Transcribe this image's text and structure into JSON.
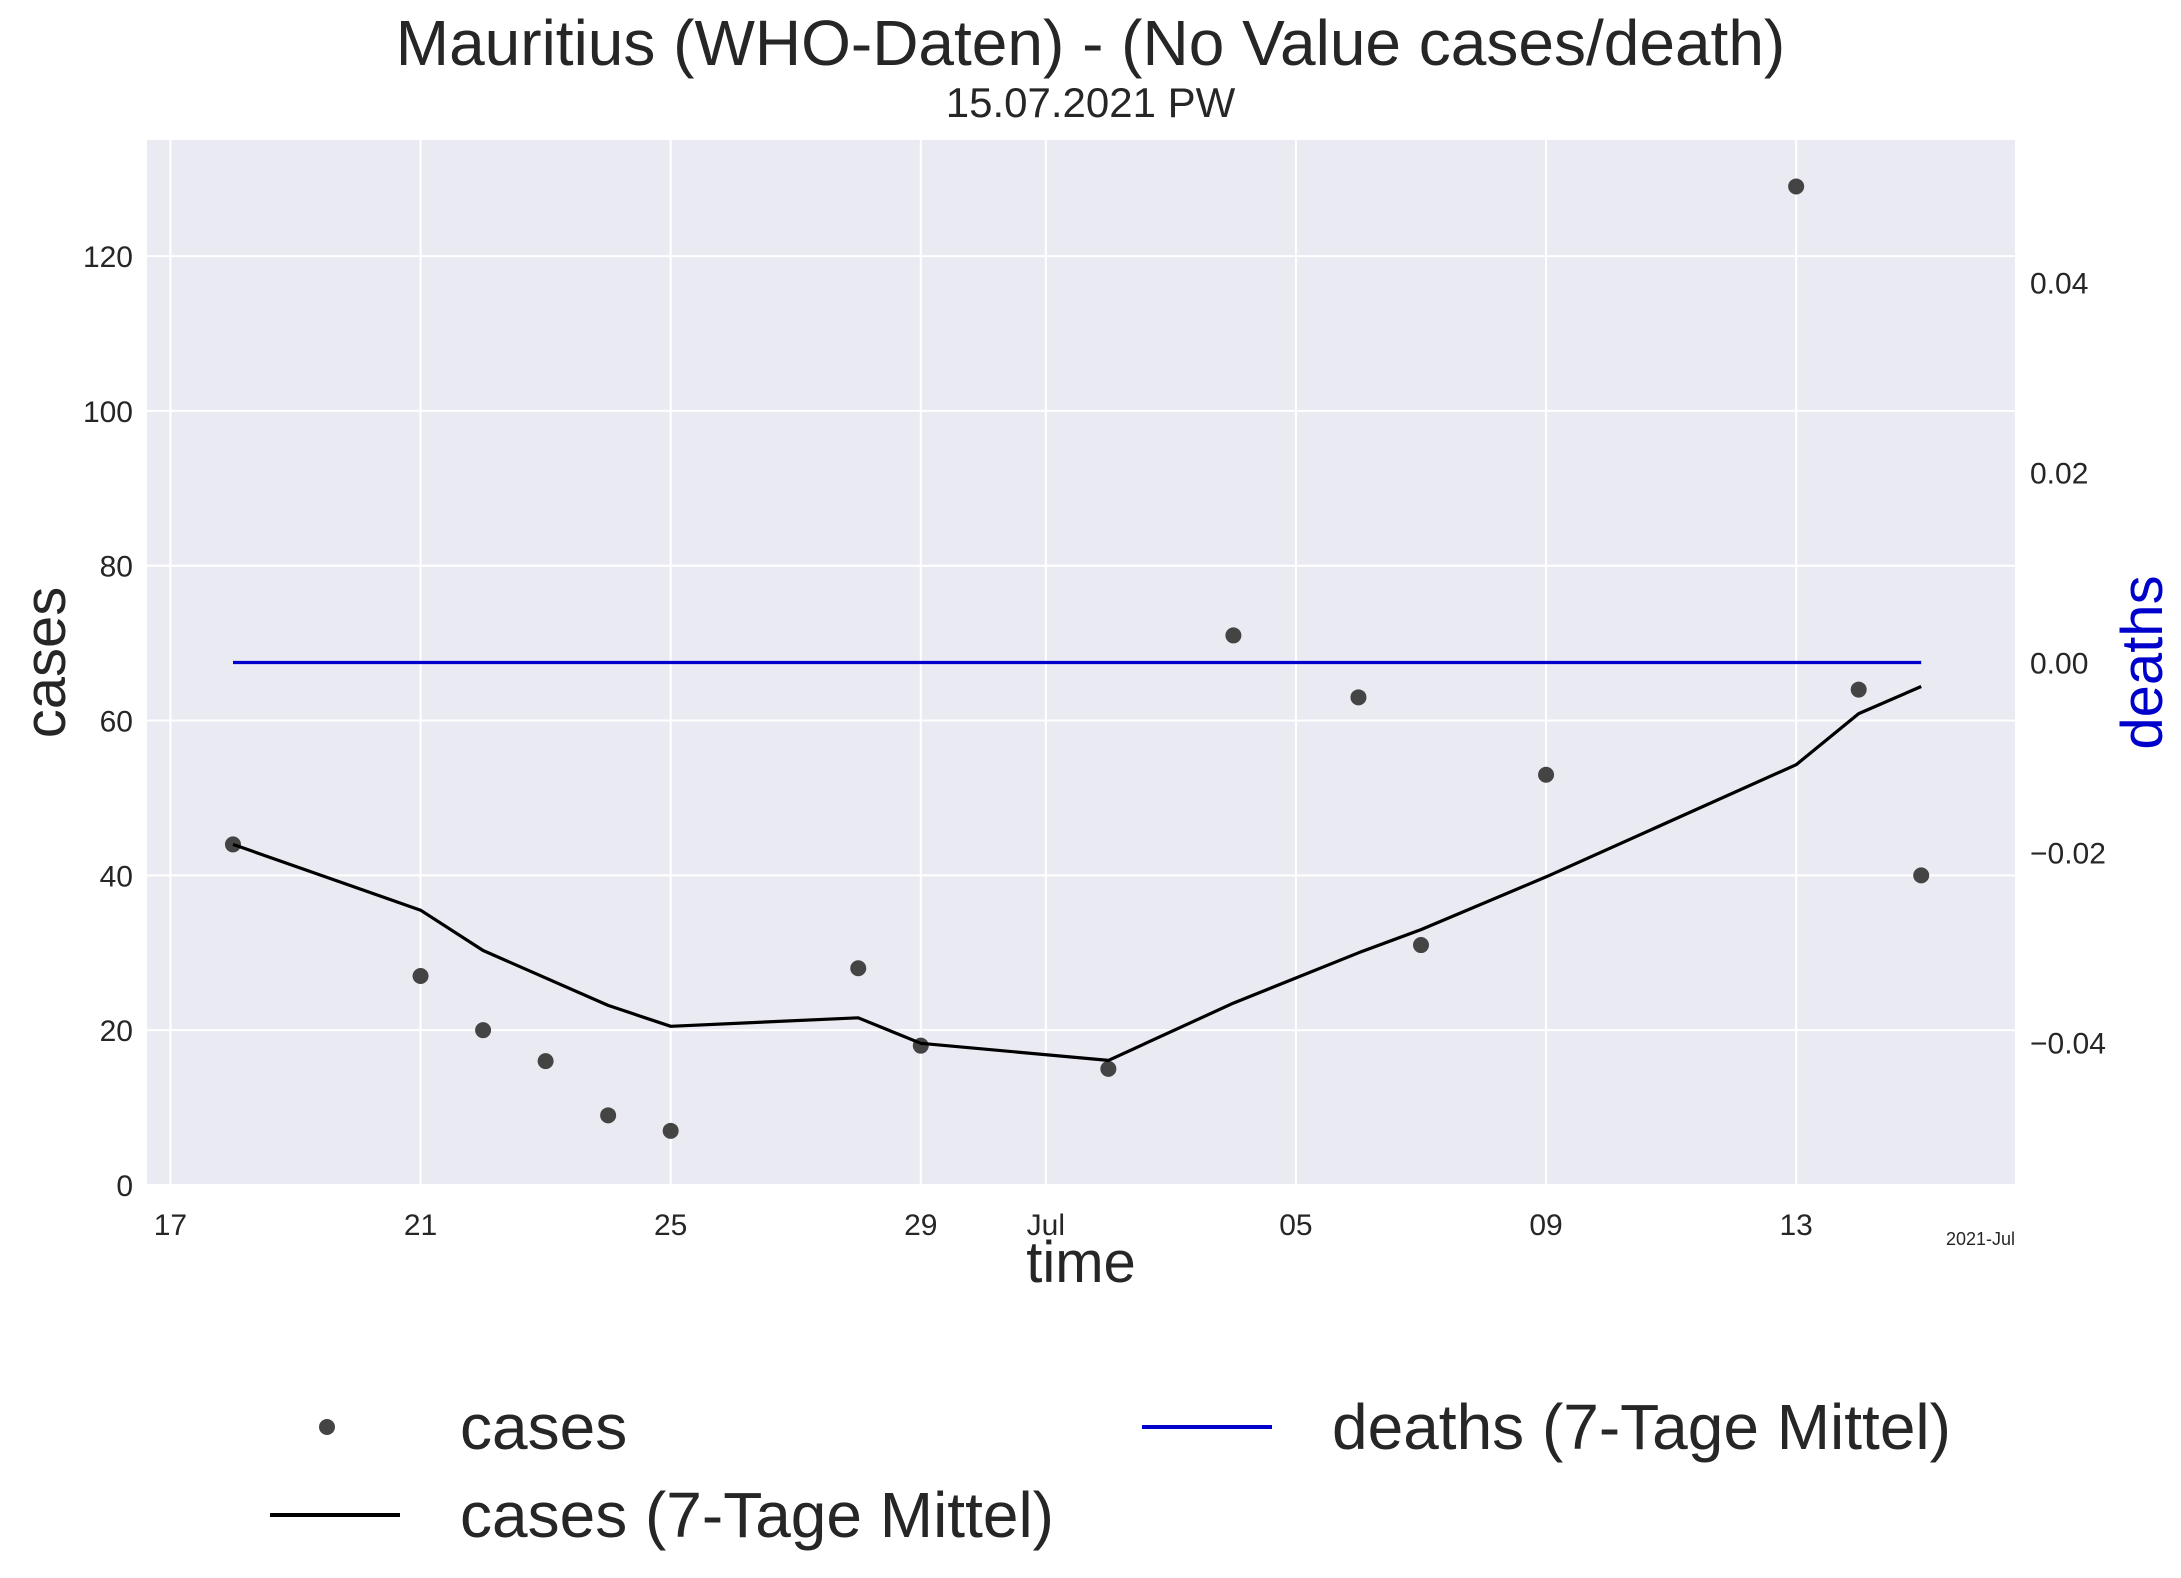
{
  "chart_data": {
    "type": "line",
    "title": "Mauritius (WHO-Daten) - (No Value cases/death)",
    "subtitle": "15.07.2021 PW",
    "xlabel": "time",
    "ylabel": "cases",
    "y2label": "deaths",
    "x_offset_label": "2021-Jul",
    "xlim": [
      "2021-06-16 15:00",
      "2021-07-16 12:00"
    ],
    "ylim": [
      0,
      135
    ],
    "y2lim": [
      -0.055,
      0.055
    ],
    "x_ticks": [
      {
        "date": "2021-06-17",
        "label": "17"
      },
      {
        "date": "2021-06-21",
        "label": "21"
      },
      {
        "date": "2021-06-25",
        "label": "25"
      },
      {
        "date": "2021-06-29",
        "label": "29"
      },
      {
        "date": "2021-07-01",
        "label": "Jul"
      },
      {
        "date": "2021-07-05",
        "label": "05"
      },
      {
        "date": "2021-07-09",
        "label": "09"
      },
      {
        "date": "2021-07-13",
        "label": "13"
      }
    ],
    "y_ticks": [
      0,
      20,
      40,
      60,
      80,
      100,
      120
    ],
    "y2_ticks": [
      {
        "value": 0.04,
        "label": "0.04"
      },
      {
        "value": 0.02,
        "label": "0.02"
      },
      {
        "value": 0.0,
        "label": "0.00"
      },
      {
        "value": -0.02,
        "label": "−0.02"
      },
      {
        "value": -0.04,
        "label": "−0.04"
      }
    ],
    "grid": true,
    "legend_position": "bottom",
    "series": [
      {
        "name": "cases",
        "kind": "scatter",
        "axis": "left",
        "color": "#444444",
        "points": [
          {
            "date": "2021-06-18",
            "value": 44
          },
          {
            "date": "2021-06-21",
            "value": 27
          },
          {
            "date": "2021-06-22",
            "value": 20
          },
          {
            "date": "2021-06-23",
            "value": 16
          },
          {
            "date": "2021-06-24",
            "value": 9
          },
          {
            "date": "2021-06-25",
            "value": 7
          },
          {
            "date": "2021-06-28",
            "value": 28
          },
          {
            "date": "2021-06-29",
            "value": 18
          },
          {
            "date": "2021-07-02",
            "value": 15
          },
          {
            "date": "2021-07-04",
            "value": 71
          },
          {
            "date": "2021-07-06",
            "value": 63
          },
          {
            "date": "2021-07-07",
            "value": 31
          },
          {
            "date": "2021-07-09",
            "value": 53
          },
          {
            "date": "2021-07-13",
            "value": 129
          },
          {
            "date": "2021-07-14",
            "value": 64
          },
          {
            "date": "2021-07-15",
            "value": 40
          }
        ]
      },
      {
        "name": "cases (7-Tage Mittel)",
        "kind": "line",
        "axis": "left",
        "color": "#000000",
        "points": [
          {
            "date": "2021-06-18",
            "value": 44
          },
          {
            "date": "2021-06-21",
            "value": 35.5
          },
          {
            "date": "2021-06-22",
            "value": 30.3
          },
          {
            "date": "2021-06-24",
            "value": 23.2
          },
          {
            "date": "2021-06-25",
            "value": 20.5
          },
          {
            "date": "2021-06-28",
            "value": 21.6
          },
          {
            "date": "2021-06-29",
            "value": 18.3
          },
          {
            "date": "2021-07-02",
            "value": 16.1
          },
          {
            "date": "2021-07-04",
            "value": 23.5
          },
          {
            "date": "2021-07-06",
            "value": 30.0
          },
          {
            "date": "2021-07-07",
            "value": 33.0
          },
          {
            "date": "2021-07-09",
            "value": 39.8
          },
          {
            "date": "2021-07-13",
            "value": 54.3
          },
          {
            "date": "2021-07-14",
            "value": 60.9
          },
          {
            "date": "2021-07-15",
            "value": 64.4
          }
        ]
      },
      {
        "name": "deaths (7-Tage Mittel)",
        "kind": "line",
        "axis": "right",
        "color": "#0000cc",
        "points": [
          {
            "date": "2021-06-18",
            "value": 0.0
          },
          {
            "date": "2021-07-15",
            "value": 0.0
          }
        ]
      }
    ]
  },
  "legend": {
    "cases": "cases",
    "cases_avg": "cases (7-Tage Mittel)",
    "deaths_avg": "deaths (7-Tage Mittel)"
  },
  "colors": {
    "plot_background": "#eaeaf2",
    "grid": "#ffffff",
    "deaths_label": "#0000cc"
  }
}
